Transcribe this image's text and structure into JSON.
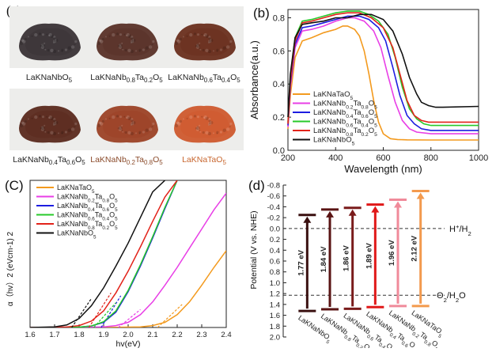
{
  "figure": {
    "a": {
      "label": "(a)",
      "samples": [
        {
          "name": "LaKNaNbO5",
          "caption_main": "LaKNaNbO",
          "caption_sub": "5",
          "color": "#3a3336",
          "caption_color": "#222222"
        },
        {
          "name": "LaKNaNb0.8Ta0.2O5",
          "caption_main": "LaKNaNb",
          "caption_sub1": "0.8",
          "caption_mid": "Ta",
          "caption_sub2": "0.2",
          "caption_end": "O",
          "caption_sub3": "5",
          "color": "#5a3228",
          "caption_color": "#222222"
        },
        {
          "name": "LaKNaNb0.6Ta0.4O5",
          "caption_main": "LaKNaNb",
          "caption_sub1": "0.6",
          "caption_mid": "Ta",
          "caption_sub2": "0.4",
          "caption_end": "O",
          "caption_sub3": "5",
          "color": "#6a2f1e",
          "caption_color": "#222222"
        },
        {
          "name": "LaKNaNb0.4Ta0.6O5",
          "caption_main": "LaKNaNb",
          "caption_sub1": "0.4",
          "caption_mid": "Ta",
          "caption_sub2": "0.6",
          "caption_end": "O",
          "caption_sub3": "5",
          "color": "#5b2a1e",
          "caption_color": "#222222"
        },
        {
          "name": "LaKNaNb0.2Ta0.8O5",
          "caption_main": "LaKNaNb",
          "caption_sub1": "0.2",
          "caption_mid": "Ta",
          "caption_sub2": "0.8",
          "caption_end": "O",
          "caption_sub3": "5",
          "color": "#9c4226",
          "caption_color": "#8a4a2a"
        },
        {
          "name": "LaKNaTaO5",
          "caption_main": "LaKNaTaO",
          "caption_sub": "5",
          "color": "#cf5a2e",
          "caption_color": "#c8662e"
        }
      ]
    },
    "b": {
      "label": "(b)"
    },
    "c": {
      "label": "(C)"
    },
    "d": {
      "label": "(d)"
    }
  },
  "chart_data": [
    {
      "panel": "b",
      "type": "line",
      "xlabel": "Wavelength (nm)",
      "ylabel": "Absorbance(a.u.)",
      "xlim": [
        200,
        1000
      ],
      "ylim": [
        0.0,
        0.85
      ],
      "xticks": [
        200,
        400,
        600,
        800,
        1000
      ],
      "yticks": [
        0.0,
        0.2,
        0.4,
        0.6,
        0.8
      ],
      "legend_position": "bottom-left",
      "series": [
        {
          "name": "LaKNaTaO5",
          "legend": "LaKNaTaO5",
          "color": "#f39a1e",
          "x": [
            200,
            210,
            230,
            260,
            300,
            350,
            400,
            430,
            450,
            480,
            500,
            520,
            540,
            560,
            580,
            600,
            630,
            660,
            700,
            800,
            1000
          ],
          "y": [
            0.13,
            0.33,
            0.56,
            0.66,
            0.68,
            0.71,
            0.73,
            0.75,
            0.75,
            0.73,
            0.69,
            0.6,
            0.46,
            0.3,
            0.17,
            0.1,
            0.07,
            0.065,
            0.063,
            0.062,
            0.062
          ]
        },
        {
          "name": "LaKNaNb0.2Ta0.8O5",
          "legend": "LaKNaNb0.2Ta0.8O5",
          "color": "#e83ee6",
          "x": [
            200,
            210,
            230,
            260,
            300,
            350,
            400,
            450,
            480,
            520,
            560,
            590,
            620,
            650,
            680,
            710,
            740,
            800,
            1000
          ],
          "y": [
            0.14,
            0.38,
            0.62,
            0.72,
            0.73,
            0.75,
            0.78,
            0.8,
            0.8,
            0.78,
            0.72,
            0.62,
            0.45,
            0.29,
            0.18,
            0.13,
            0.11,
            0.1,
            0.1
          ]
        },
        {
          "name": "LaKNaNb0.4Ta0.6O5",
          "legend": "LaKNaNb0.4Ta0.6O5",
          "color": "#1d1de0",
          "x": [
            200,
            210,
            230,
            260,
            300,
            350,
            400,
            450,
            500,
            540,
            580,
            610,
            640,
            670,
            700,
            730,
            760,
            800,
            1000
          ],
          "y": [
            0.15,
            0.4,
            0.64,
            0.74,
            0.75,
            0.77,
            0.79,
            0.81,
            0.81,
            0.79,
            0.74,
            0.66,
            0.5,
            0.33,
            0.21,
            0.16,
            0.13,
            0.12,
            0.12
          ]
        },
        {
          "name": "LaKNaNb0.6Ta0.4O5",
          "legend": "LaKNaNb0.6Ta0.4O5",
          "color": "#27c92a",
          "x": [
            200,
            210,
            230,
            260,
            300,
            350,
            400,
            450,
            500,
            540,
            580,
            620,
            650,
            680,
            710,
            740,
            770,
            800,
            1000
          ],
          "y": [
            0.17,
            0.44,
            0.68,
            0.78,
            0.79,
            0.81,
            0.83,
            0.84,
            0.84,
            0.82,
            0.78,
            0.7,
            0.56,
            0.38,
            0.25,
            0.19,
            0.16,
            0.15,
            0.15
          ]
        },
        {
          "name": "LaKNaNb0.8Ta0.2O5",
          "legend": "LaKNaNb0.8Ta0.2O5",
          "color": "#e2231a",
          "x": [
            200,
            210,
            230,
            260,
            300,
            350,
            400,
            450,
            500,
            550,
            600,
            640,
            670,
            700,
            730,
            760,
            790,
            820,
            1000
          ],
          "y": [
            0.16,
            0.42,
            0.66,
            0.77,
            0.78,
            0.8,
            0.82,
            0.83,
            0.83,
            0.8,
            0.74,
            0.62,
            0.46,
            0.3,
            0.21,
            0.18,
            0.17,
            0.17,
            0.17
          ]
        },
        {
          "name": "LaKNaNbO5",
          "legend": "LaKNaNbO5",
          "color": "#111111",
          "x": [
            200,
            210,
            230,
            260,
            300,
            350,
            400,
            450,
            500,
            550,
            600,
            640,
            680,
            710,
            740,
            760,
            790,
            820,
            850,
            1000
          ],
          "y": [
            0.2,
            0.46,
            0.68,
            0.76,
            0.77,
            0.78,
            0.8,
            0.8,
            0.82,
            0.82,
            0.79,
            0.72,
            0.58,
            0.44,
            0.34,
            0.29,
            0.27,
            0.26,
            0.26,
            0.265
          ]
        }
      ]
    },
    {
      "panel": "c",
      "type": "line",
      "xlabel": "hv(eV)",
      "ylabel": "α（hv）2 (eVcm-1) 2",
      "xlim": [
        1.6,
        2.4
      ],
      "xticks": [
        1.6,
        1.7,
        1.8,
        1.9,
        2.0,
        2.1,
        2.2,
        2.3,
        2.4
      ],
      "legend_position": "top-left",
      "series": [
        {
          "name": "LaKNaTaO5",
          "legend": "LaKNaTaO5",
          "color": "#f39a1e",
          "x": [
            1.6,
            1.9,
            2.05,
            2.1,
            2.15,
            2.2,
            2.25,
            2.3,
            2.35,
            2.4
          ],
          "y": [
            0,
            0,
            0.005,
            0.015,
            0.04,
            0.1,
            0.2,
            0.33,
            0.47,
            0.6
          ],
          "fit_x": [
            2.12,
            2.22
          ]
        },
        {
          "name": "LaKNaNb0.2Ta0.8O5",
          "legend": "LaKNaNb0.2Ta0.8O5",
          "color": "#e83ee6",
          "x": [
            1.6,
            1.8,
            1.9,
            1.95,
            2.0,
            2.05,
            2.1,
            2.15,
            2.2,
            2.25,
            2.3,
            2.35,
            2.4
          ],
          "y": [
            0,
            0,
            0.005,
            0.015,
            0.04,
            0.1,
            0.2,
            0.33,
            0.47,
            0.62,
            0.77,
            0.92,
            1.05
          ],
          "fit_x": [
            1.96,
            2.05
          ]
        },
        {
          "name": "LaKNaNb0.4Ta0.6O5",
          "legend": "LaKNaNb0.4Ta0.6O5",
          "color": "#1d1de0",
          "x": [
            1.6,
            1.8,
            1.85,
            1.9,
            1.95,
            2.0,
            2.05,
            2.1,
            2.15,
            2.2
          ],
          "y": [
            0,
            0.003,
            0.012,
            0.04,
            0.12,
            0.28,
            0.48,
            0.7,
            0.93,
            1.15
          ],
          "fit_x": [
            1.89,
            1.97
          ]
        },
        {
          "name": "LaKNaNb0.6Ta0.4O5",
          "legend": "LaKNaNb0.6Ta0.4O5",
          "color": "#27c92a",
          "x": [
            1.6,
            1.8,
            1.85,
            1.9,
            1.95,
            2.0,
            2.05,
            2.1,
            2.15,
            2.2
          ],
          "y": [
            0,
            0.003,
            0.012,
            0.045,
            0.13,
            0.29,
            0.49,
            0.71,
            0.94,
            1.15
          ],
          "fit_x": [
            1.86,
            1.95
          ]
        },
        {
          "name": "LaKNaNb0.8Ta0.2O5",
          "legend": "LaKNaNb0.8Ta0.2O5",
          "color": "#e2231a",
          "x": [
            1.6,
            1.75,
            1.8,
            1.85,
            1.9,
            1.95,
            2.0,
            2.05,
            2.1,
            2.15,
            2.2
          ],
          "y": [
            0,
            0.004,
            0.015,
            0.05,
            0.13,
            0.27,
            0.44,
            0.63,
            0.83,
            1.02,
            1.15
          ],
          "fit_x": [
            1.84,
            1.93
          ]
        },
        {
          "name": "LaKNaNbO5",
          "legend": "LaKNaNbO5",
          "color": "#111111",
          "x": [
            1.6,
            1.7,
            1.75,
            1.8,
            1.85,
            1.9,
            1.95,
            2.0,
            2.05,
            2.1,
            2.15
          ],
          "y": [
            0,
            0.005,
            0.02,
            0.07,
            0.17,
            0.31,
            0.48,
            0.66,
            0.86,
            1.06,
            1.15
          ],
          "fit_x": [
            1.77,
            1.85
          ]
        }
      ]
    },
    {
      "panel": "d",
      "type": "bar",
      "ylabel": "Potential (V vs. NHE)",
      "ylim": [
        2.0,
        -0.8
      ],
      "yticks": [
        "-0.8",
        "-0.6",
        "-0.4",
        "-0.2",
        "0.0",
        "0.2",
        "0.4",
        "0.6",
        "0.8",
        "1.0",
        "1.2",
        "1.4",
        "1.6",
        "1.8",
        "2.0"
      ],
      "reference_lines": [
        {
          "value": 0.0,
          "label_main": "H",
          "label_sup": "+",
          "label_end": "/H",
          "label_sub": "2"
        },
        {
          "value": 1.23,
          "label_main": "O",
          "label_sub": "2",
          "label_end": "/H",
          "label_sub2": "2",
          "label_tail": "O"
        }
      ],
      "categories": [
        "LaKNaNbO5",
        "LaKNaNb0.8Ta0.2O5",
        "LaKNaNb0.6Ta0.4O5",
        "LaKNaNb0.4Ta0.6O5",
        "LaKNaNb0.2Ta0.8O5",
        "LaKNaTaO5"
      ],
      "category_labels": [
        {
          "main": "LaKNaNbO",
          "s1": "5"
        },
        {
          "main": "LaKNaNb",
          "s1": "0.8",
          "mid": "Ta",
          "s2": "0.2",
          "end": "O",
          "s3": "5"
        },
        {
          "main": "LaKNaNb",
          "s1": "0.6",
          "mid": "Ta",
          "s2": "0.4",
          "end": "O",
          "s3": "5"
        },
        {
          "main": "LaKNaNb",
          "s1": "0.4",
          "mid": "Ta",
          "s2": "0.6",
          "end": "O",
          "s3": "5"
        },
        {
          "main": "LaKNaNb",
          "s1": "0.2",
          "mid": "Ta",
          "s2": "0.8",
          "end": "O",
          "s3": "5"
        },
        {
          "main": "LaKNaTaO",
          "s1": "5"
        }
      ],
      "conduction_band": [
        -0.25,
        -0.35,
        -0.38,
        -0.44,
        -0.53,
        -0.69
      ],
      "valence_band": [
        1.52,
        1.49,
        1.48,
        1.45,
        1.43,
        1.43
      ],
      "gaps": [
        "1.77 eV",
        "1.84 eV",
        "1.86 eV",
        "1.89 eV",
        "1.96 eV",
        "2.12 eV"
      ],
      "colors": [
        "#3a1010",
        "#5a1414",
        "#7a1b1b",
        "#e01818",
        "#f08a9a",
        "#f39a4e"
      ]
    }
  ]
}
